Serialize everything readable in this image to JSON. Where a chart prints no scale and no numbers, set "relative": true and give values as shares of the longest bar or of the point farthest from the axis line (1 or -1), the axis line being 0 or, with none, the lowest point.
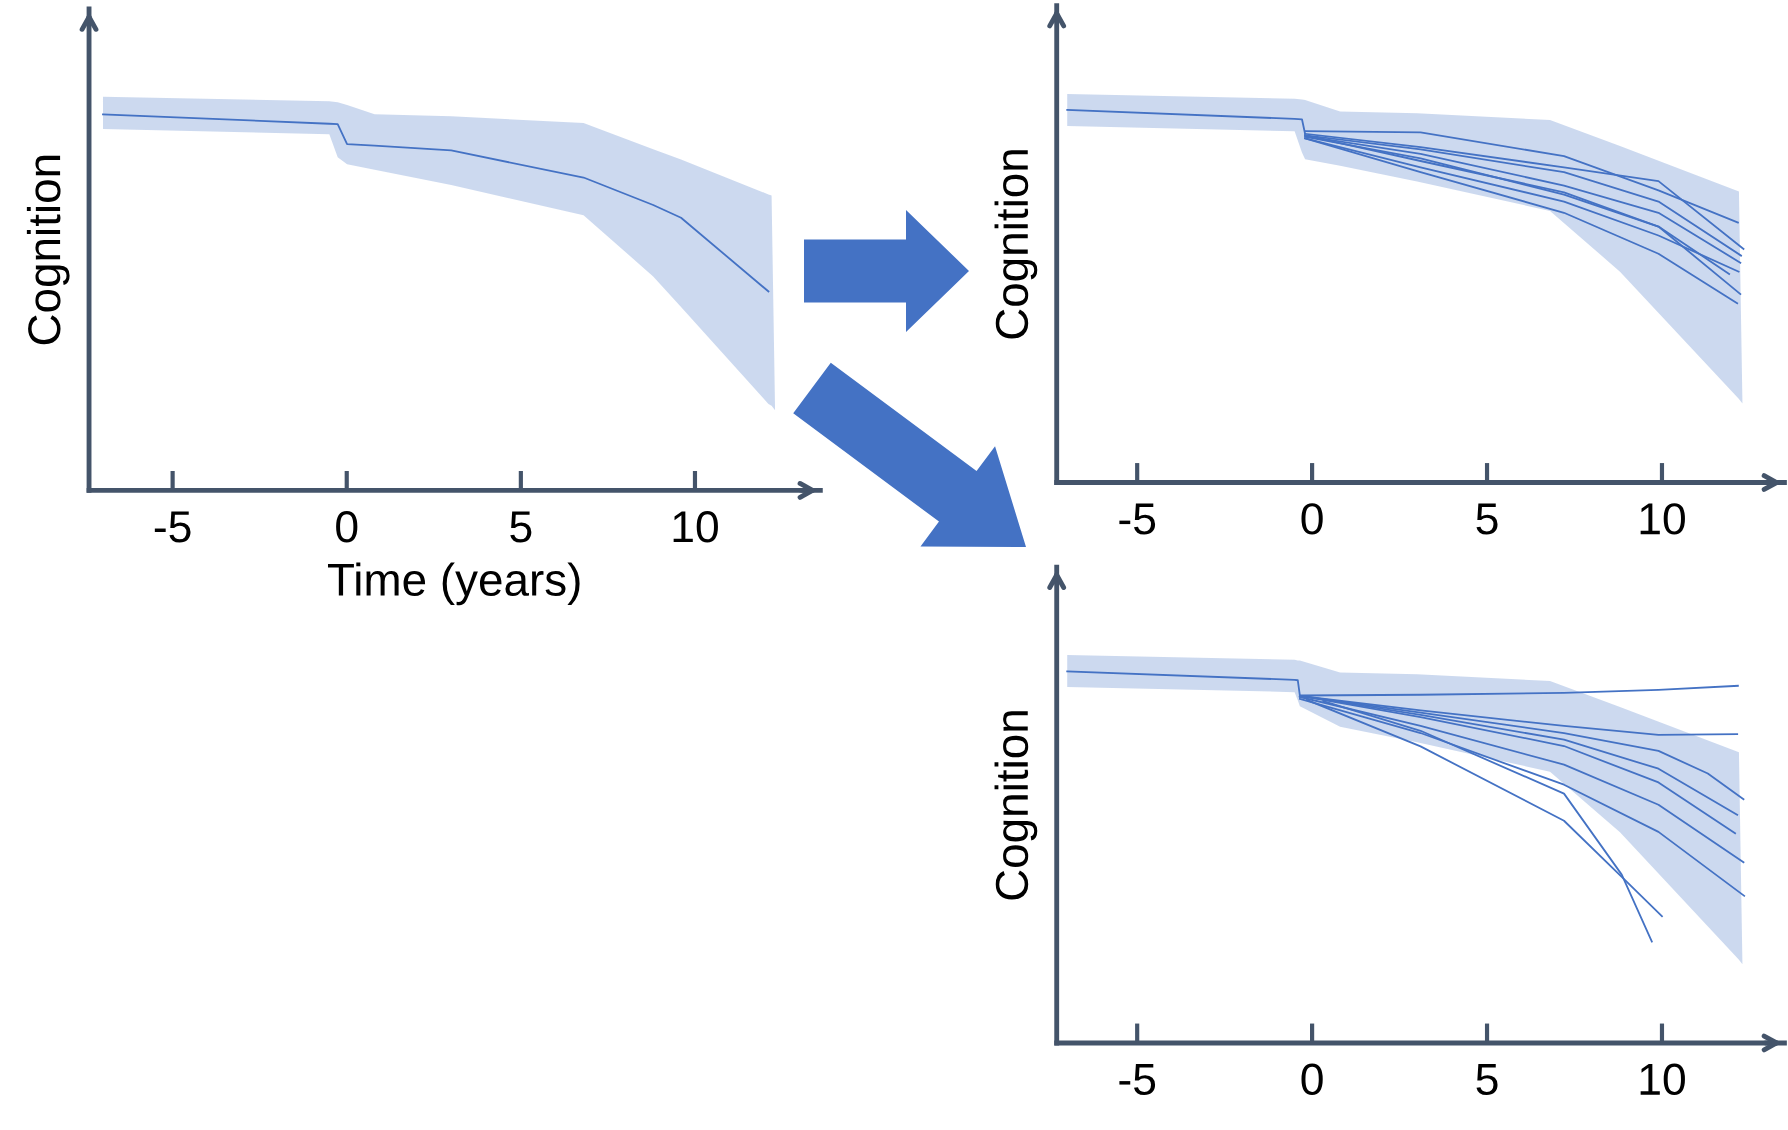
{
  "chart_data": [
    {
      "type": "line",
      "relative": true,
      "xlabel": "Time (years)",
      "ylabel": "Cognition",
      "xlim": [
        -7.4,
        13.6
      ],
      "xticks": [
        -5,
        0,
        5,
        10
      ],
      "series": [
        {
          "color": "#4472c4",
          "x": [
            -7.0,
            -0.5,
            -0.26,
            0.01,
            0.8,
            3.0,
            6.8,
            8.8,
            9.6,
            12.11,
            12.2,
            12.3
          ],
          "values": [
            1,
            0.975,
            0.974,
            0.921,
            0.917,
            0.904,
            0.832,
            0.759,
            0.725,
            0.529,
            null,
            null
          ],
          "upper": [
            1.047,
            1.035,
            1.032,
            1.025,
            1.0,
            0.995,
            0.977,
            0.907,
            0.88,
            0.787,
            0.784,
            0.213
          ],
          "lower": [
            0.961,
            0.947,
            0.886,
            0.867,
            0.853,
            0.812,
            0.732,
            0.569,
            0.488,
            0.23,
            0.225,
            0.213
          ]
        }
      ]
    },
    {
      "type": "line",
      "relative": true,
      "ylabel": "Cognition",
      "xlim": [
        -7.3,
        13.5
      ],
      "xticks": [
        -5,
        0,
        5,
        10
      ],
      "series": [
        {
          "color": "#4472c4",
          "x": [
            -7.0,
            -0.5,
            -0.29,
            -0.2,
            0.8,
            3.0,
            6.8,
            8.8,
            12.2,
            12.3
          ],
          "values": [
            1,
            0.976,
            0.975,
            0.936,
            null,
            null,
            null,
            null,
            null,
            null
          ],
          "upper": [
            1.043,
            1.03,
            1.028,
            1.027,
            0.996,
            0.991,
            0.973,
            0.903,
            0.781,
            0.212
          ],
          "lower": [
            0.957,
            0.943,
            0.886,
            0.868,
            0.85,
            0.808,
            0.729,
            0.566,
            0.224,
            0.212
          ]
        },
        {
          "color": "#4472c4",
          "x": [
            -0.2,
            3.1,
            7.2,
            9.9,
            12.17
          ],
          "values": [
            0.943,
            0.94,
            0.876,
            0.784,
            0.698
          ]
        },
        {
          "color": "#4472c4",
          "x": [
            -0.2,
            3.1,
            7.2,
            9.9,
            12.33
          ],
          "values": [
            0.936,
            0.9,
            0.846,
            0.809,
            0.627
          ]
        },
        {
          "color": "#4472c4",
          "x": [
            -0.2,
            3.1,
            7.2,
            9.9,
            12.26
          ],
          "values": [
            0.932,
            0.894,
            0.833,
            0.754,
            0.609
          ]
        },
        {
          "color": "#4472c4",
          "x": [
            -0.2,
            3.1,
            7.2,
            9.9,
            12.24
          ],
          "values": [
            0.93,
            0.882,
            0.797,
            0.724,
            0.59
          ]
        },
        {
          "color": "#4472c4",
          "x": [
            -0.2,
            3.1,
            7.2,
            9.9,
            11.92
          ],
          "values": [
            0.928,
            0.87,
            0.773,
            0.687,
            0.56
          ]
        },
        {
          "color": "#4472c4",
          "x": [
            -0.2,
            3.1,
            7.2,
            9.9,
            12.19
          ],
          "values": [
            0.924,
            0.846,
            0.754,
            0.663,
            0.566
          ]
        },
        {
          "color": "#4472c4",
          "x": [
            -0.2,
            3.1,
            7.2,
            9.9,
            12.24
          ],
          "values": [
            0.932,
            0.863,
            0.779,
            0.687,
            0.506
          ]
        },
        {
          "color": "#4472c4",
          "x": [
            -0.2,
            3.1,
            7.2,
            9.9,
            12.15
          ],
          "values": [
            0.924,
            0.833,
            0.724,
            0.614,
            0.481
          ]
        }
      ]
    },
    {
      "type": "line",
      "relative": true,
      "ylabel": "Cognition",
      "xlim": [
        -7.3,
        13.5
      ],
      "xticks": [
        -5,
        0,
        5,
        10
      ],
      "series": [
        {
          "color": "#4472c4",
          "x": [
            -7.0,
            -0.5,
            -0.41,
            -0.35,
            0.8,
            3.0,
            6.8,
            8.8,
            12.2,
            12.3
          ],
          "values": [
            1,
            0.977,
            0.976,
            0.935,
            null,
            null,
            null,
            null,
            null,
            null
          ],
          "upper": [
            1.044,
            1.031,
            1.029,
            1.029,
            0.997,
            0.992,
            0.974,
            0.904,
            0.782,
            0.212
          ],
          "lower": [
            0.958,
            0.944,
            0.922,
            0.906,
            0.851,
            0.809,
            0.73,
            0.567,
            0.224,
            0.212
          ]
        },
        {
          "color": "#4472c4",
          "x": [
            -0.35,
            3.1,
            7.2,
            9.9,
            12.17
          ],
          "values": [
            0.935,
            0.937,
            0.942,
            0.95,
            0.961
          ]
        },
        {
          "color": "#4472c4",
          "x": [
            -0.35,
            3.1,
            7.2,
            9.9,
            12.15
          ],
          "values": [
            0.934,
            0.895,
            0.853,
            0.829,
            0.831
          ]
        },
        {
          "color": "#4472c4",
          "x": [
            -0.35,
            3.1,
            7.2,
            9.9,
            11.31,
            12.33
          ],
          "values": [
            0.934,
            0.889,
            0.834,
            0.786,
            0.725,
            0.656
          ]
        },
        {
          "color": "#4472c4",
          "x": [
            -0.35,
            3.1,
            7.2,
            9.9,
            12.15
          ],
          "values": [
            0.934,
            0.883,
            0.816,
            0.738,
            0.614
          ]
        },
        {
          "color": "#4472c4",
          "x": [
            -0.35,
            3.1,
            7.2,
            9.9,
            12.09
          ],
          "values": [
            0.934,
            0.877,
            0.799,
            0.701,
            0.564
          ]
        },
        {
          "color": "#4472c4",
          "x": [
            -0.35,
            3.1,
            7.2,
            9.9,
            12.33
          ],
          "values": [
            0.931,
            0.853,
            0.749,
            0.641,
            0.486
          ]
        },
        {
          "color": "#4472c4",
          "x": [
            -0.35,
            3.1,
            7.2,
            9.9,
            12.35
          ],
          "values": [
            0.926,
            0.834,
            0.695,
            0.568,
            0.396
          ]
        },
        {
          "color": "#4472c4",
          "x": [
            0.32,
            3.1,
            7.2,
            8.85,
            9.71
          ],
          "values": [
            0.92,
            0.84,
            0.671,
            0.453,
            0.273
          ]
        },
        {
          "color": "#4472c4",
          "x": [
            -0.15,
            3.1,
            7.2,
            8.85,
            10.0
          ],
          "values": [
            0.923,
            0.798,
            0.598,
            0.447,
            0.341
          ]
        }
      ]
    }
  ]
}
